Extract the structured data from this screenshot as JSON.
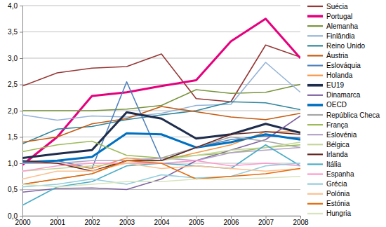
{
  "chart_data": {
    "type": "line",
    "x": [
      2000,
      2001,
      2002,
      2003,
      2004,
      2005,
      2006,
      2007,
      2008
    ],
    "xlim": [
      2000,
      2008
    ],
    "xticks": [
      2000,
      2001,
      2002,
      2003,
      2004,
      2005,
      2006,
      2007,
      2008
    ],
    "ylim": [
      0,
      4
    ],
    "yticks": [
      {
        "value": 0,
        "label": "0,0"
      },
      {
        "value": 0.5,
        "label": "0,5"
      },
      {
        "value": 1,
        "label": "1,0"
      },
      {
        "value": 1.5,
        "label": "1,5"
      },
      {
        "value": 2,
        "label": "2,0"
      },
      {
        "value": 2.5,
        "label": "2,5"
      },
      {
        "value": 3,
        "label": "3,0"
      },
      {
        "value": 3.5,
        "label": "3,5"
      },
      {
        "value": 4,
        "label": "4,0"
      }
    ],
    "grid": true,
    "legend": "right",
    "series": [
      {
        "name": "Suécia",
        "color": "#953735",
        "values": [
          2.47,
          2.72,
          2.81,
          2.84,
          3.08,
          2.23,
          2.17,
          3.25,
          3.02
        ]
      },
      {
        "name": "Portugal",
        "color": "#e6007e",
        "line_style": "bold",
        "values": [
          0.97,
          1.5,
          2.28,
          2.35,
          2.47,
          2.58,
          3.32,
          3.75,
          3.0
        ]
      },
      {
        "name": "Alemanha",
        "color": "#77933c",
        "values": [
          2.0,
          2.0,
          2.0,
          2.03,
          2.1,
          2.4,
          2.33,
          2.35,
          2.5
        ]
      },
      {
        "name": "Finlândia",
        "color": "#95b3d7",
        "values": [
          1.92,
          1.82,
          1.9,
          1.88,
          1.95,
          2.1,
          2.12,
          2.92,
          2.35
        ]
      },
      {
        "name": "Reino Unido",
        "color": "#31859c",
        "values": [
          1.37,
          1.65,
          1.7,
          1.83,
          1.92,
          2.0,
          2.17,
          2.15,
          2.02
        ]
      },
      {
        "name": "Áustria",
        "color": "#c55a11",
        "values": [
          1.4,
          1.5,
          1.75,
          1.85,
          2.08,
          1.98,
          1.88,
          1.83,
          1.95
        ]
      },
      {
        "name": "Eslováquia",
        "color": "#4f81bd",
        "values": [
          1.02,
          1.05,
          0.9,
          2.55,
          1.05,
          1.3,
          1.45,
          1.52,
          1.48
        ]
      },
      {
        "name": "Holanda",
        "color": "#f79646",
        "values": [
          1.0,
          1.0,
          0.9,
          1.1,
          1.05,
          1.2,
          1.35,
          1.6,
          1.6
        ]
      },
      {
        "name": "EU19",
        "color": "#1f2d4d",
        "line_style": "bold",
        "values": [
          1.1,
          1.18,
          1.25,
          1.97,
          1.85,
          1.47,
          1.55,
          1.75,
          1.58
        ]
      },
      {
        "name": "Dinamarca",
        "color": "#8064a2",
        "values": [
          0.45,
          0.52,
          0.53,
          0.5,
          0.7,
          1.05,
          1.25,
          1.45,
          1.9
        ]
      },
      {
        "name": "OECD",
        "color": "#0070c0",
        "line_style": "bold",
        "values": [
          1.02,
          1.05,
          1.12,
          1.57,
          1.55,
          1.3,
          1.4,
          1.55,
          1.45
        ]
      },
      {
        "name": "República Checa",
        "color": "#a5a5a5",
        "values": [
          0.6,
          0.7,
          0.8,
          1.05,
          1.1,
          1.3,
          1.5,
          1.42,
          1.3
        ]
      },
      {
        "name": "França",
        "color": "#9bbb59",
        "values": [
          1.22,
          1.35,
          1.42,
          1.15,
          1.1,
          1.15,
          1.2,
          1.3,
          1.35
        ]
      },
      {
        "name": "Eslovénia",
        "color": "#b3a2c7",
        "values": [
          1.0,
          1.0,
          1.05,
          1.05,
          1.1,
          1.05,
          1.2,
          1.25,
          1.3
        ]
      },
      {
        "name": "Bélgica",
        "color": "#c3d69b",
        "values": [
          0.85,
          0.9,
          0.95,
          1.0,
          1.05,
          1.15,
          1.25,
          1.3,
          1.4
        ]
      },
      {
        "name": "Irlanda",
        "color": "#632523",
        "values": [
          1.05,
          1.0,
          0.85,
          1.05,
          1.05,
          1.3,
          1.55,
          1.6,
          1.55
        ]
      },
      {
        "name": "Itália",
        "color": "#4bacc6",
        "values": [
          0.2,
          0.55,
          0.65,
          0.95,
          1.0,
          0.95,
          0.9,
          1.35,
          0.95
        ]
      },
      {
        "name": "Espanha",
        "color": "#ff99cc",
        "values": [
          0.85,
          0.95,
          1.0,
          1.0,
          1.0,
          1.05,
          0.95,
          1.0,
          0.95
        ]
      },
      {
        "name": "Grécia",
        "color": "#93cddd",
        "values": [
          0.55,
          0.6,
          0.7,
          0.6,
          0.78,
          0.72,
          0.75,
          0.95,
          1.0
        ]
      },
      {
        "name": "Polónia",
        "color": "#fac090",
        "values": [
          0.7,
          0.85,
          0.85,
          1.0,
          0.9,
          0.95,
          0.9,
          0.85,
          0.9
        ]
      },
      {
        "name": "Estónia",
        "color": "#e46c0a",
        "values": [
          0.6,
          0.7,
          0.8,
          1.05,
          1.0,
          0.7,
          0.75,
          0.8,
          0.9
        ]
      },
      {
        "name": "Hungria",
        "color": "#d7e4bd",
        "values": [
          0.6,
          0.55,
          0.6,
          0.65,
          0.65,
          0.7,
          0.7,
          0.72,
          0.75
        ]
      }
    ]
  }
}
